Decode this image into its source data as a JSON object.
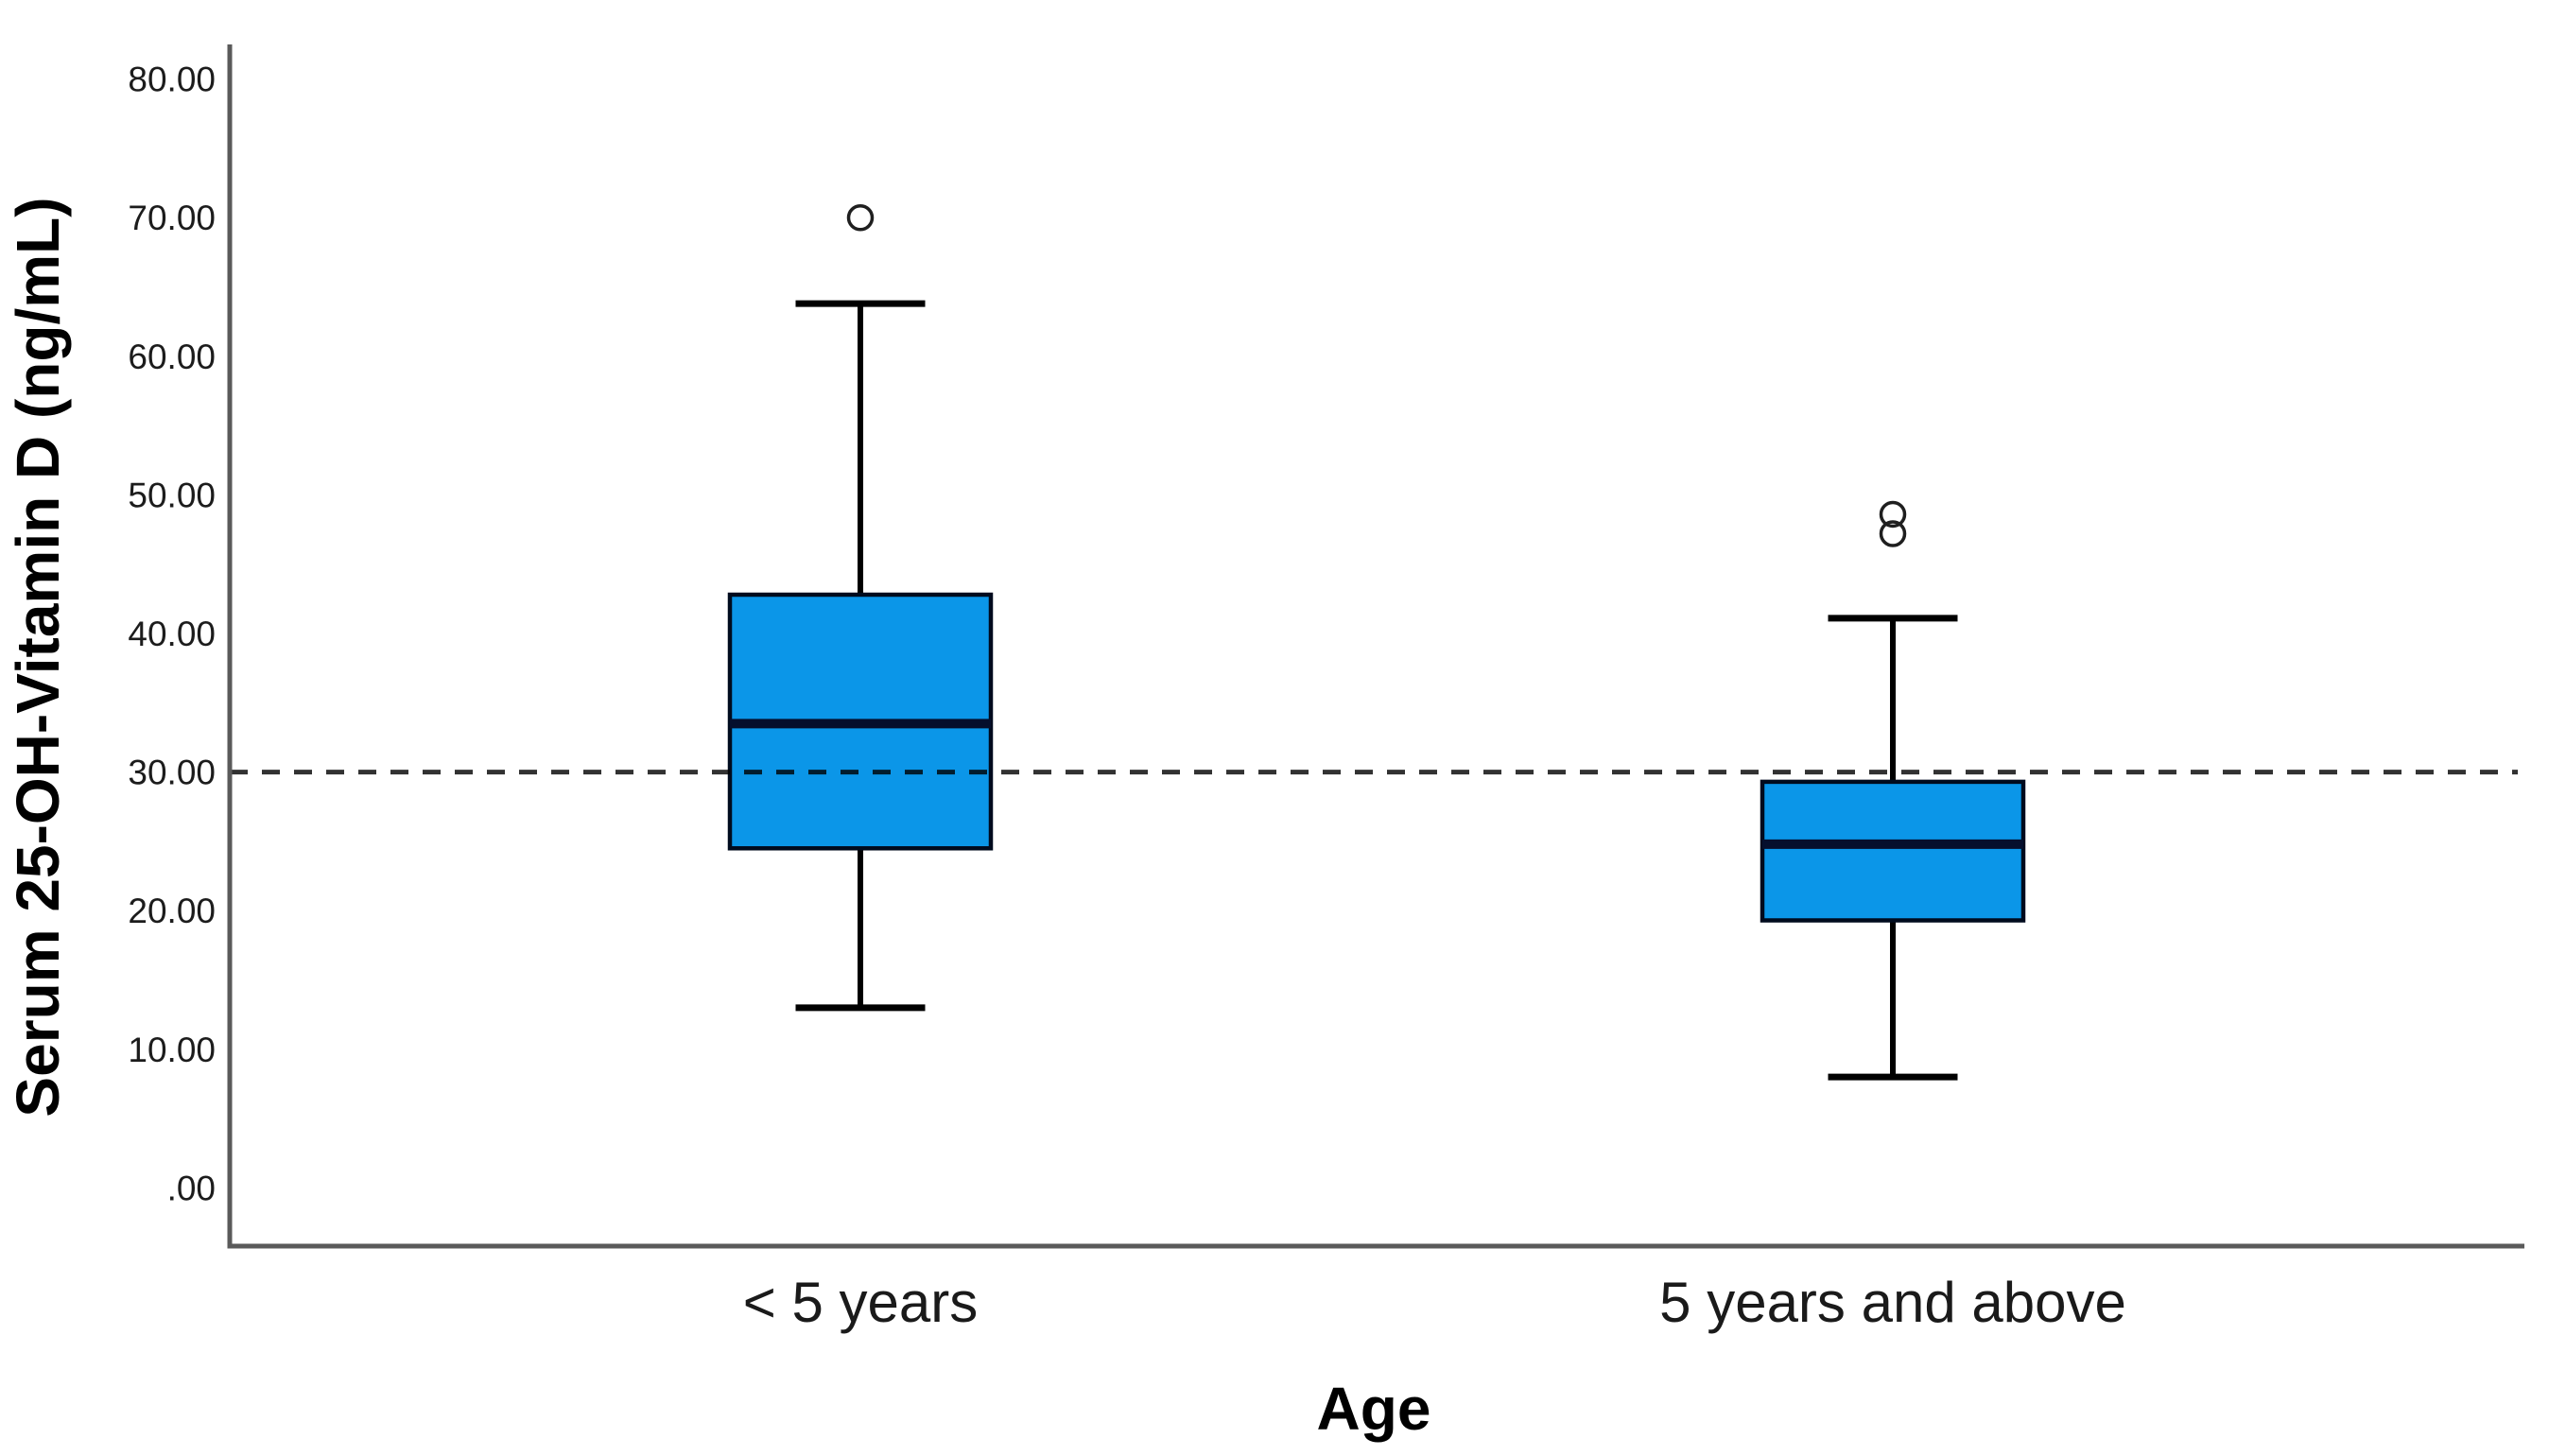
{
  "figure": {
    "description": "Boxplot of serum 25-OH-vitamin D concentration by age group with dashed reference line at 30 ng/mL",
    "background": "#ffffff"
  },
  "chart_data": {
    "type": "boxplot",
    "categories": [
      "< 5 years",
      "5 years and above"
    ],
    "xlabel": "Age",
    "ylabel": "Serum 25-OH-Vitamin D (ng/mL)",
    "ylim": [
      -4.2,
      82.5
    ],
    "grid": false,
    "legend": "none",
    "y_ticks": [
      {
        "value": 0,
        "label": ".00"
      },
      {
        "value": 10,
        "label": "10.00"
      },
      {
        "value": 20,
        "label": "20.00"
      },
      {
        "value": 30,
        "label": "30.00"
      },
      {
        "value": 40,
        "label": "40.00"
      },
      {
        "value": 50,
        "label": "50.00"
      },
      {
        "value": 60,
        "label": "60.00"
      },
      {
        "value": 70,
        "label": "70.00"
      },
      {
        "value": 80,
        "label": "80.00"
      }
    ],
    "reference_line": {
      "value": 30.0,
      "style": "dashed"
    },
    "series": [
      {
        "category": "< 5 years",
        "whisker_low": 13.0,
        "q1": 24.5,
        "median": 33.5,
        "q3": 42.8,
        "whisker_high": 63.8,
        "outliers": [
          70.0
        ]
      },
      {
        "category": "5 years and above",
        "whisker_low": 8.0,
        "q1": 19.3,
        "median": 24.8,
        "q3": 29.3,
        "whisker_high": 41.1,
        "outliers": [
          48.6,
          47.2
        ]
      }
    ]
  },
  "colors": {
    "box_fill": "#0b96e8",
    "box_border": "#000b1e",
    "median_line": "#050f2d",
    "whisker": "#000000",
    "outlier_stroke": "#1f1f1f",
    "axis_line": "#5a5a5a",
    "tick_label": "#1c1c1c",
    "category_label": "#1a1a1a",
    "reference_line": "#000000"
  }
}
